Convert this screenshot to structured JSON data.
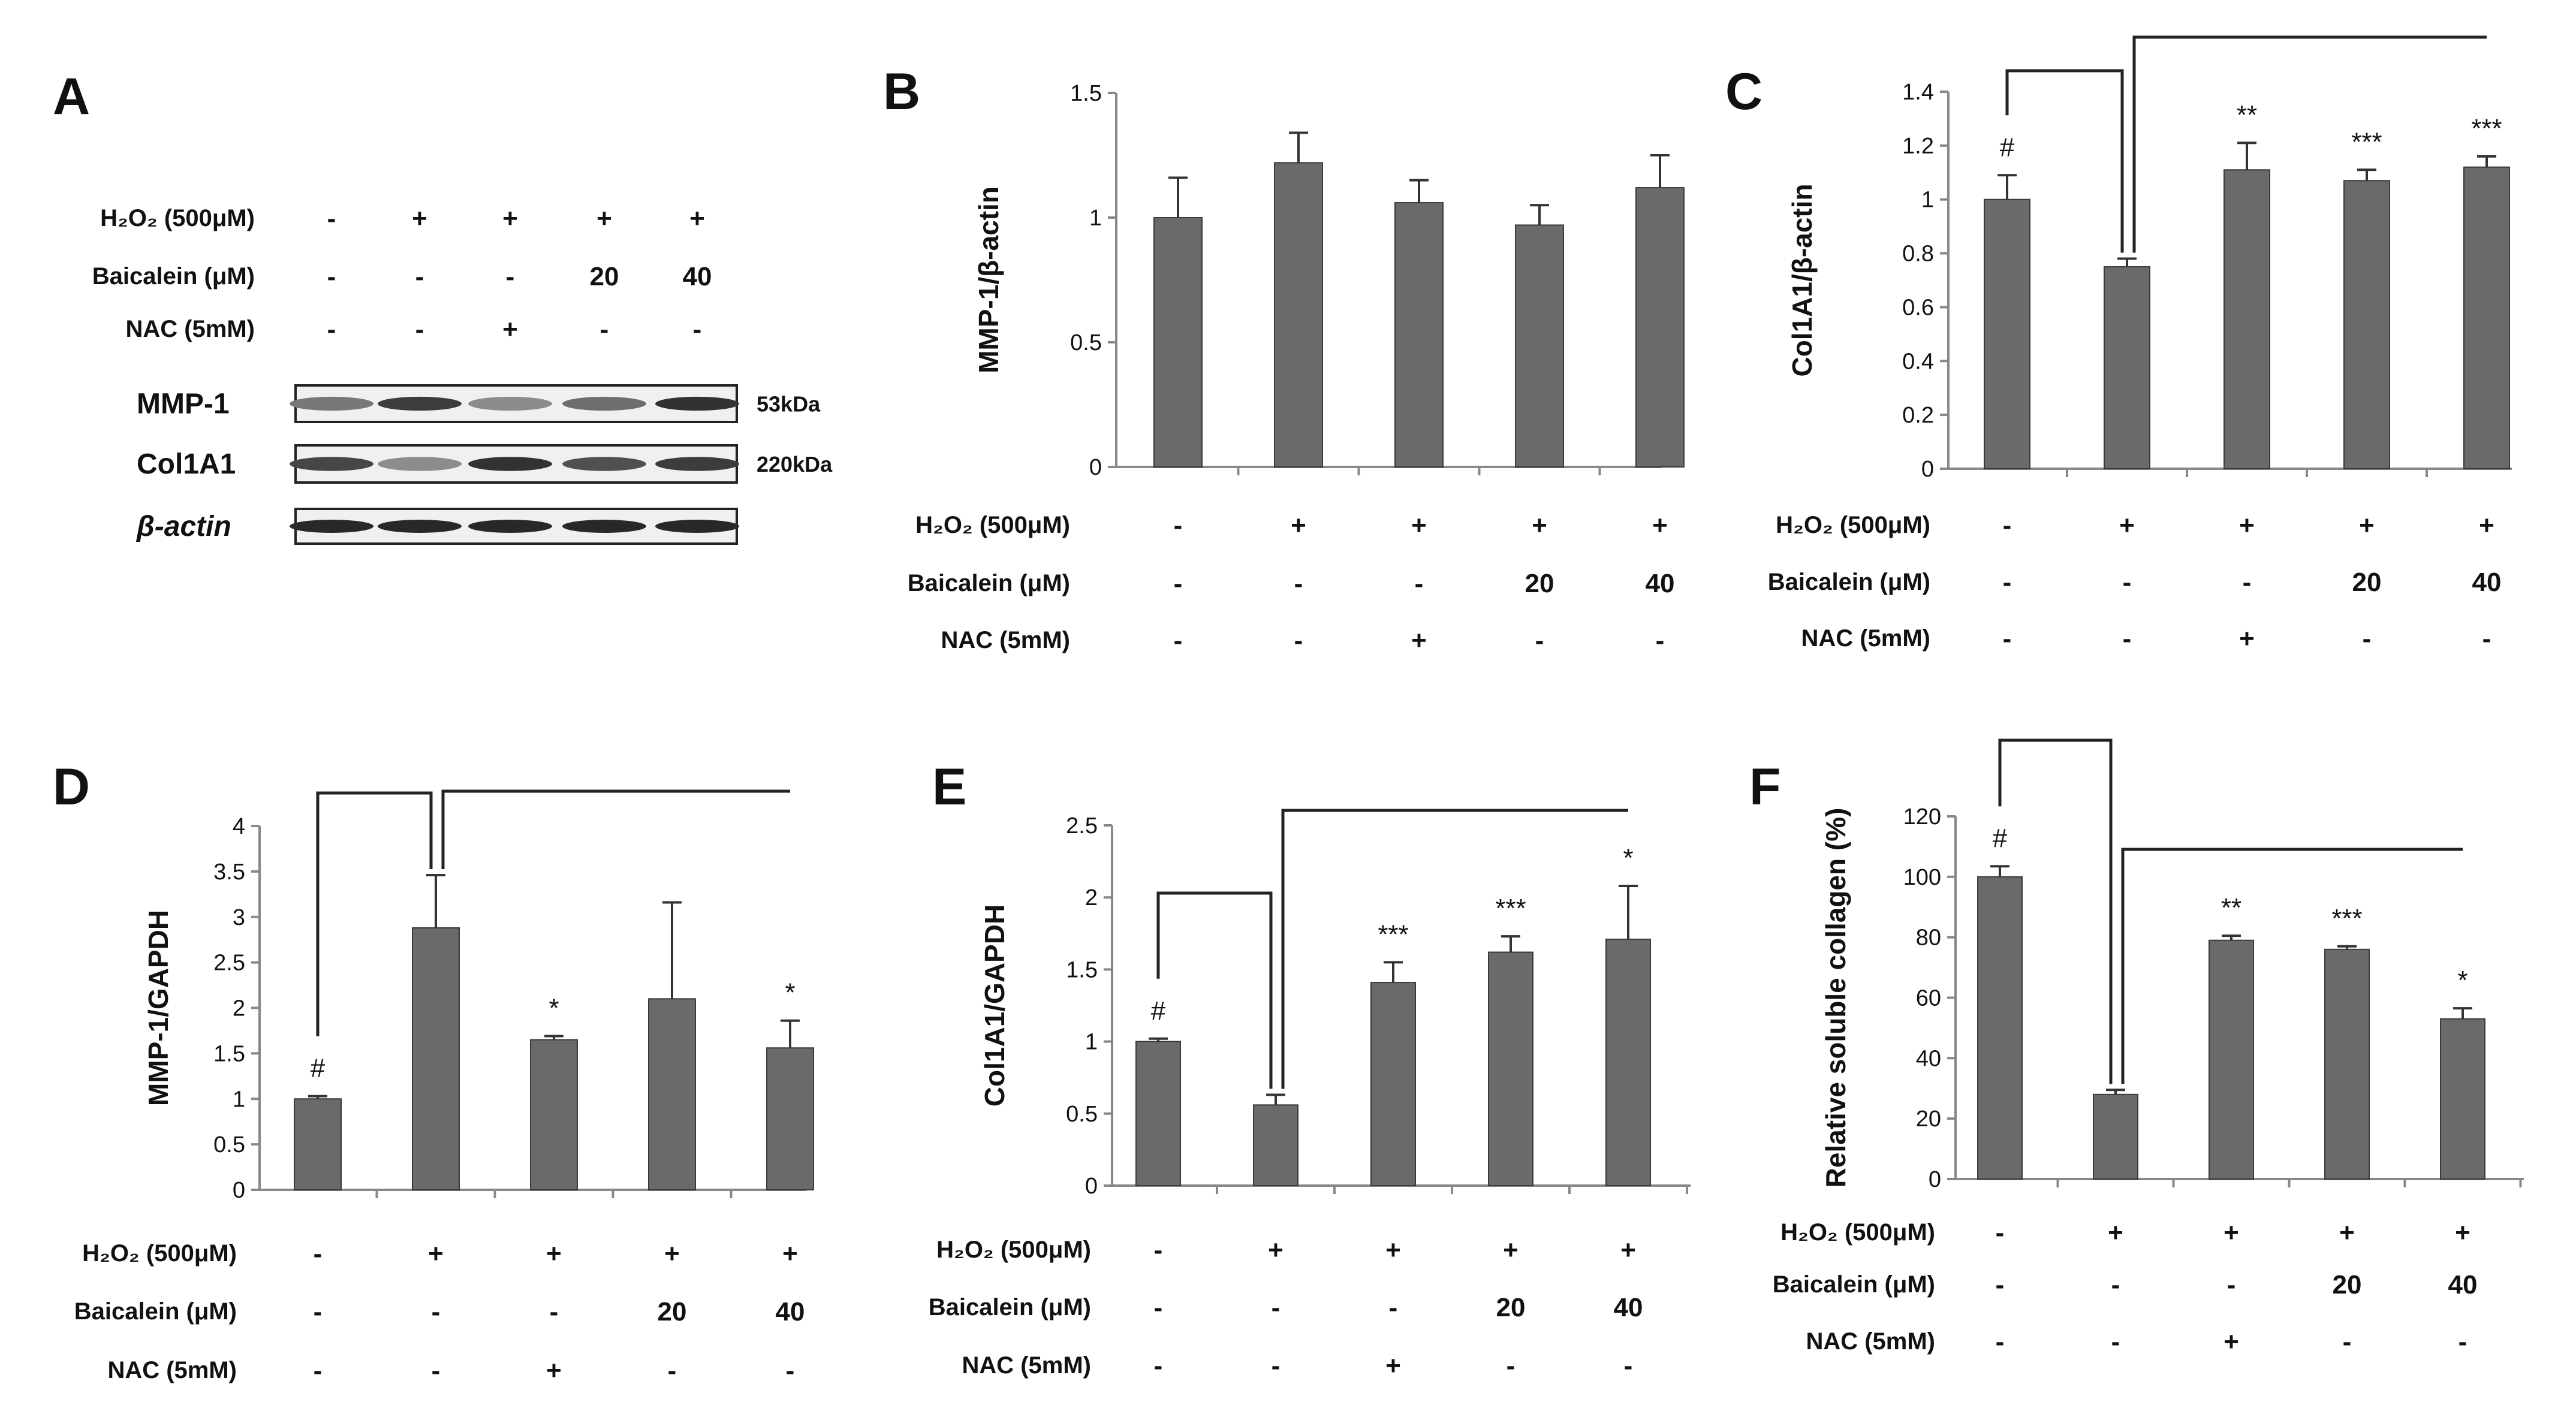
{
  "figure_labels": {
    "A": "A",
    "B": "B",
    "C": "C",
    "D": "D",
    "E": "E",
    "F": "F"
  },
  "conditions": {
    "row_labels": [
      "H₂O₂ (500μM)",
      "Baicalein (μM)",
      "NAC (5mM)"
    ],
    "values": [
      [
        "-",
        "+",
        "+",
        "+",
        "+"
      ],
      [
        "-",
        "-",
        "-",
        "20",
        "40"
      ],
      [
        "-",
        "-",
        "+",
        "-",
        "-"
      ]
    ]
  },
  "western_blot": {
    "bands": [
      {
        "label": "MMP-1",
        "size": "53kDa",
        "intensities": [
          0.55,
          0.85,
          0.45,
          0.6,
          0.9
        ]
      },
      {
        "label": "Col1A1",
        "size": "220kDa",
        "intensities": [
          0.8,
          0.45,
          0.9,
          0.75,
          0.85
        ]
      },
      {
        "label": "β-actin",
        "size": "",
        "intensities": [
          0.95,
          0.95,
          0.95,
          0.95,
          0.95
        ]
      }
    ]
  },
  "colors": {
    "bar": "#6b6969",
    "axis": "#888888",
    "text": "#111111"
  },
  "chart_data": [
    {
      "panel": "B",
      "type": "bar",
      "ylabel": "MMP-1/β-actin",
      "ylim": [
        0,
        1.5
      ],
      "yticks": [
        "0",
        "0.5",
        "1",
        "1.5"
      ],
      "values": [
        1.0,
        1.22,
        1.06,
        0.97,
        1.12
      ],
      "errors": [
        0.16,
        0.12,
        0.09,
        0.08,
        0.13
      ],
      "annotations": [
        "",
        "",
        "",
        "",
        ""
      ],
      "brackets": false
    },
    {
      "panel": "C",
      "type": "bar",
      "ylabel": "Col1A1/β-actin",
      "ylim": [
        0,
        1.4
      ],
      "yticks": [
        "0",
        "0.2",
        "0.4",
        "0.6",
        "0.8",
        "1",
        "1.2",
        "1.4"
      ],
      "values": [
        1.0,
        0.75,
        1.11,
        1.07,
        1.12
      ],
      "errors": [
        0.09,
        0.03,
        0.1,
        0.04,
        0.04
      ],
      "annotations": [
        "#",
        "",
        "**",
        "***",
        "***"
      ],
      "brackets": true
    },
    {
      "panel": "D",
      "type": "bar",
      "ylabel": "MMP-1/GAPDH",
      "ylim": [
        0,
        4
      ],
      "yticks": [
        "0",
        "0.5",
        "1",
        "1.5",
        "2",
        "2.5",
        "3",
        "3.5",
        "4"
      ],
      "values": [
        1.0,
        2.88,
        1.65,
        2.1,
        1.56
      ],
      "errors": [
        0.03,
        0.58,
        0.04,
        1.06,
        0.3
      ],
      "annotations": [
        "#",
        "",
        "*",
        "",
        "*"
      ],
      "brackets": true
    },
    {
      "panel": "E",
      "type": "bar",
      "ylabel": "Col1A1/GAPDH",
      "ylim": [
        0,
        2.5
      ],
      "yticks": [
        "0",
        "0.5",
        "1",
        "1.5",
        "2",
        "2.5"
      ],
      "values": [
        1.0,
        0.56,
        1.41,
        1.62,
        1.71
      ],
      "errors": [
        0.02,
        0.07,
        0.14,
        0.11,
        0.37
      ],
      "annotations": [
        "#",
        "",
        "***",
        "***",
        "*"
      ],
      "brackets": true
    },
    {
      "panel": "F",
      "type": "bar",
      "ylabel": "Relative soluble collagen (%)",
      "ylim": [
        0,
        120
      ],
      "yticks": [
        "0",
        "20",
        "40",
        "60",
        "80",
        "100",
        "120"
      ],
      "values": [
        100,
        28,
        79,
        76,
        53
      ],
      "errors": [
        3.5,
        1.5,
        1.5,
        1.0,
        3.5
      ],
      "annotations": [
        "#",
        "",
        "**",
        "***",
        "*"
      ],
      "brackets": true
    }
  ]
}
